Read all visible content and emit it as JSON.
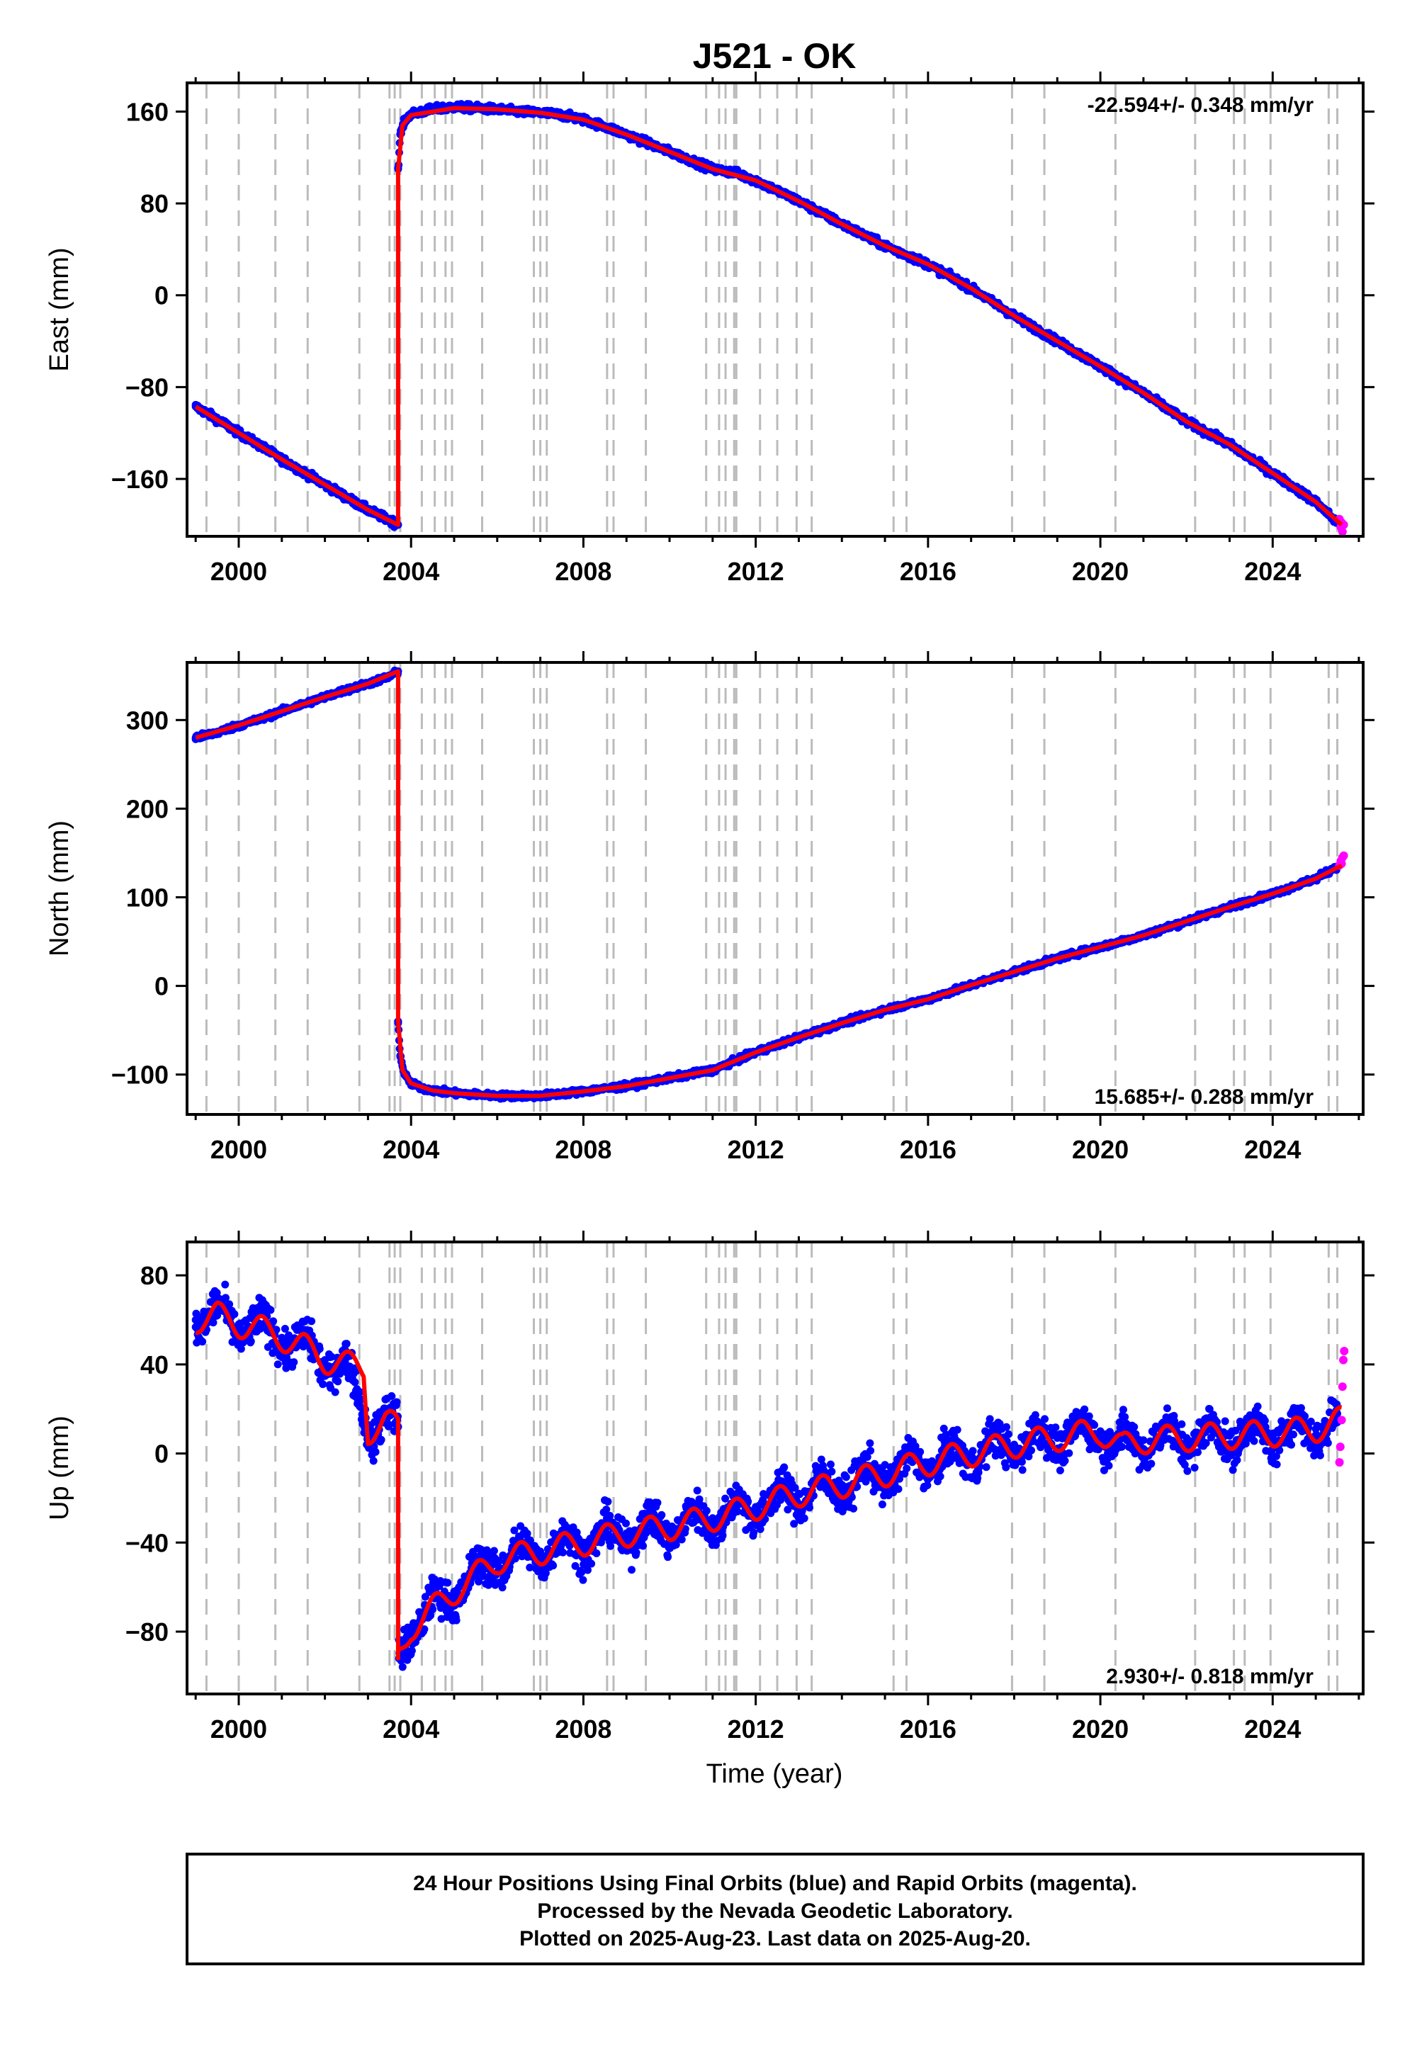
{
  "figure": {
    "title": "J521 - OK",
    "caption": [
      "24 Hour Positions Using Final Orbits (blue) and Rapid Orbits (magenta).",
      "Processed by the Nevada Geodetic Laboratory.",
      "Plotted on 2025-Aug-23. Last data on 2025-Aug-20."
    ]
  },
  "colors": {
    "final_orbits": "#0000ff",
    "rapid_orbits": "#ff00ff",
    "model_fit": "#ff0000",
    "event_lines": "#bbbbbb",
    "frame": "#000000"
  },
  "chart_data": [
    {
      "type": "scatter",
      "panel": "east",
      "ylabel": "East (mm)",
      "xlabel": "",
      "xlim": [
        1998.8,
        2026.1
      ],
      "ylim": [
        -210,
        185
      ],
      "yticks": [
        160,
        80,
        0,
        -80,
        -160
      ],
      "xticks": [
        2000,
        2004,
        2008,
        2012,
        2016,
        2020,
        2024
      ],
      "rate_label": "-22.594+/- 0.348 mm/yr",
      "rate_position": "top-right",
      "grid": false,
      "series": [
        {
          "name": "Final Orbits (blue)",
          "x": [
            1999.0,
            1999.5,
            2000.0,
            2000.5,
            2001.0,
            2001.5,
            2002.0,
            2002.5,
            2003.0,
            2003.5,
            2003.7
          ],
          "values": [
            -97,
            -108,
            -120,
            -131,
            -143,
            -154,
            -165,
            -176,
            -187,
            -196,
            -200
          ]
        },
        {
          "name": "Final Orbits (blue)",
          "x": [
            2003.7,
            2003.75,
            2003.85,
            2004.0,
            2004.5,
            2005.0,
            2005.5,
            2006.0,
            2006.5,
            2007.0,
            2007.5,
            2008.0,
            2008.5,
            2009.0,
            2010.0,
            2011.0,
            2011.3,
            2011.5,
            2012.0,
            2013.0,
            2014.0,
            2015.0,
            2016.0,
            2017.0,
            2018.0,
            2019.0,
            2020.0,
            2021.0,
            2022.0,
            2023.0,
            2024.0,
            2025.0,
            2025.5
          ],
          "values": [
            110,
            140,
            152,
            158,
            162,
            164,
            163,
            162,
            160,
            159,
            157,
            153,
            147,
            140,
            125,
            110,
            108,
            107,
            100,
            82,
            62,
            43,
            27,
            6,
            -18,
            -40,
            -62,
            -85,
            -110,
            -130,
            -155,
            -180,
            -198
          ]
        },
        {
          "name": "Rapid Orbits (magenta)",
          "x": [
            2025.55,
            2025.58,
            2025.6,
            2025.62,
            2025.65
          ],
          "values": [
            -195,
            -202,
            -198,
            -206,
            -200
          ]
        }
      ],
      "model": {
        "x": [
          1999.0,
          2000.0,
          2001.0,
          2002.0,
          2003.0,
          2003.7,
          2003.7,
          2003.8,
          2004.0,
          2005.0,
          2006.0,
          2007.0,
          2008.0,
          2009.0,
          2010.0,
          2011.0,
          2012.0,
          2013.0,
          2014.0,
          2015.0,
          2016.0,
          2017.0,
          2018.0,
          2019.0,
          2020.0,
          2021.0,
          2022.0,
          2023.0,
          2024.0,
          2025.0,
          2025.6
        ],
        "values": [
          -97,
          -120,
          -143,
          -165,
          -187,
          -200,
          110,
          148,
          157,
          163,
          162,
          159,
          153,
          140,
          125,
          110,
          100,
          82,
          62,
          43,
          27,
          6,
          -18,
          -40,
          -62,
          -85,
          -110,
          -130,
          -155,
          -180,
          -200
        ]
      }
    },
    {
      "type": "scatter",
      "panel": "north",
      "ylabel": "North (mm)",
      "xlabel": "",
      "xlim": [
        1998.8,
        2026.1
      ],
      "ylim": [
        -145,
        365
      ],
      "yticks": [
        300,
        200,
        100,
        0,
        -100
      ],
      "xticks": [
        2000,
        2004,
        2008,
        2012,
        2016,
        2020,
        2024
      ],
      "rate_label": "15.685+/- 0.288 mm/yr",
      "rate_position": "bottom-right",
      "grid": false,
      "series": [
        {
          "name": "Final Orbits (blue)",
          "x": [
            1999.0,
            1999.5,
            2000.0,
            2000.5,
            2001.0,
            2001.5,
            2002.0,
            2002.5,
            2003.0,
            2003.5,
            2003.7
          ],
          "values": [
            280,
            286,
            294,
            301,
            310,
            318,
            326,
            334,
            341,
            349,
            355
          ]
        },
        {
          "name": "Final Orbits (blue)",
          "x": [
            2003.7,
            2003.75,
            2003.85,
            2004.0,
            2004.3,
            2004.7,
            2005.0,
            2006.0,
            2007.0,
            2008.0,
            2009.0,
            2010.0,
            2011.0,
            2012.0,
            2013.0,
            2014.0,
            2015.0,
            2016.0,
            2017.0,
            2018.0,
            2019.0,
            2020.0,
            2021.0,
            2022.0,
            2023.0,
            2024.0,
            2025.0,
            2025.5
          ],
          "values": [
            -40,
            -80,
            -100,
            -110,
            -116,
            -119,
            -121,
            -124,
            -124,
            -119,
            -113,
            -104,
            -95,
            -75,
            -58,
            -42,
            -27,
            -15,
            1,
            16,
            31,
            44,
            57,
            73,
            89,
            104,
            121,
            135
          ]
        },
        {
          "name": "Rapid Orbits (magenta)",
          "x": [
            2025.55,
            2025.58,
            2025.6,
            2025.62,
            2025.65
          ],
          "values": [
            136,
            141,
            138,
            145,
            147
          ]
        }
      ],
      "model": {
        "x": [
          1999.0,
          2000.0,
          2001.0,
          2002.0,
          2003.0,
          2003.7,
          2003.7,
          2003.8,
          2004.0,
          2004.5,
          2005.0,
          2006.0,
          2007.0,
          2008.0,
          2009.0,
          2010.0,
          2011.0,
          2012.0,
          2013.0,
          2014.0,
          2015.0,
          2016.0,
          2017.0,
          2018.0,
          2019.0,
          2020.0,
          2021.0,
          2022.0,
          2023.0,
          2024.0,
          2025.0,
          2025.6
        ],
        "values": [
          280,
          294,
          310,
          326,
          341,
          355,
          -40,
          -95,
          -110,
          -118,
          -121,
          -124,
          -124,
          -119,
          -113,
          -104,
          -95,
          -75,
          -58,
          -42,
          -27,
          -15,
          1,
          16,
          31,
          44,
          57,
          73,
          89,
          104,
          121,
          136
        ]
      }
    },
    {
      "type": "scatter",
      "panel": "up",
      "ylabel": "Up (mm)",
      "xlabel": "Time (year)",
      "xlim": [
        1998.8,
        2026.1
      ],
      "ylim": [
        -108,
        95
      ],
      "yticks": [
        80,
        40,
        0,
        -40,
        -80
      ],
      "xticks": [
        2000,
        2004,
        2008,
        2012,
        2016,
        2020,
        2024
      ],
      "rate_label": "2.930+/- 0.818 mm/yr",
      "rate_position": "bottom-right",
      "grid": false,
      "series": [
        {
          "name": "Final Orbits (blue)",
          "x": [
            1999.0,
            1999.5,
            2000.0,
            2000.5,
            2001.0,
            2001.5,
            2002.0,
            2002.5,
            2002.9,
            2003.1,
            2003.4,
            2003.7
          ],
          "values": [
            60,
            62,
            58,
            56,
            52,
            48,
            42,
            38,
            20,
            10,
            15,
            12
          ]
        },
        {
          "name": "Final Orbits (blue)",
          "x": [
            2003.72,
            2003.8,
            2004.0,
            2004.5,
            2005.0,
            2005.5,
            2006.0,
            2007.0,
            2008.0,
            2009.0,
            2010.0,
            2011.0,
            2012.0,
            2013.0,
            2014.0,
            2015.0,
            2016.0,
            2017.0,
            2018.0,
            2019.0,
            2020.0,
            2020.5,
            2021.0,
            2022.0,
            2023.0,
            2024.0,
            2025.0,
            2025.5
          ],
          "values": [
            -92,
            -88,
            -78,
            -70,
            -62,
            -55,
            -48,
            -44,
            -40,
            -36,
            -33,
            -29,
            -24,
            -18,
            -14,
            -9,
            -4,
            0,
            4,
            7,
            10,
            3,
            6,
            7,
            8,
            9,
            11,
            14
          ]
        },
        {
          "name": "Rapid Orbits (magenta)",
          "x": [
            2025.55,
            2025.57,
            2025.6,
            2025.62,
            2025.64,
            2025.66
          ],
          "values": [
            -4,
            3,
            15,
            30,
            42,
            46
          ]
        }
      ],
      "model": {
        "x": [
          1999.0,
          1999.5,
          2000.0,
          2000.5,
          2001.0,
          2001.5,
          2002.0,
          2002.5,
          2002.9,
          2003.0,
          2003.4,
          2003.7,
          2003.7,
          2004.0,
          2004.5,
          2005.0,
          2005.5,
          2006.0,
          2007.0,
          2008.0,
          2009.0,
          2010.0,
          2011.0,
          2012.0,
          2013.0,
          2014.0,
          2015.0,
          2016.0,
          2017.0,
          2018.0,
          2019.0,
          2020.0,
          2020.5,
          2021.0,
          2022.0,
          2023.0,
          2024.0,
          2025.0,
          2025.6
        ],
        "values": [
          60,
          62,
          58,
          56,
          52,
          48,
          42,
          40,
          38,
          10,
          14,
          12,
          -92,
          -78,
          -70,
          -62,
          -55,
          -48,
          -44,
          -40,
          -36,
          -33,
          -29,
          -24,
          -18,
          -14,
          -9,
          -4,
          0,
          4,
          7,
          10,
          3,
          6,
          7,
          8,
          9,
          11,
          15
        ]
      },
      "seasonal_amplitude": 6
    }
  ],
  "event_dates": [
    1999.25,
    2000.0,
    2000.85,
    2001.6,
    2002.8,
    2003.5,
    2003.62,
    2003.75,
    2004.25,
    2004.55,
    2004.8,
    2004.95,
    2005.65,
    2006.85,
    2007.0,
    2007.15,
    2008.55,
    2008.7,
    2009.45,
    2010.85,
    2011.15,
    2011.3,
    2011.5,
    2011.55,
    2012.1,
    2012.5,
    2012.95,
    2013.3,
    2015.2,
    2015.5,
    2017.95,
    2018.7,
    2020.35,
    2022.2,
    2023.1,
    2023.35,
    2023.95,
    2025.3,
    2025.5
  ]
}
